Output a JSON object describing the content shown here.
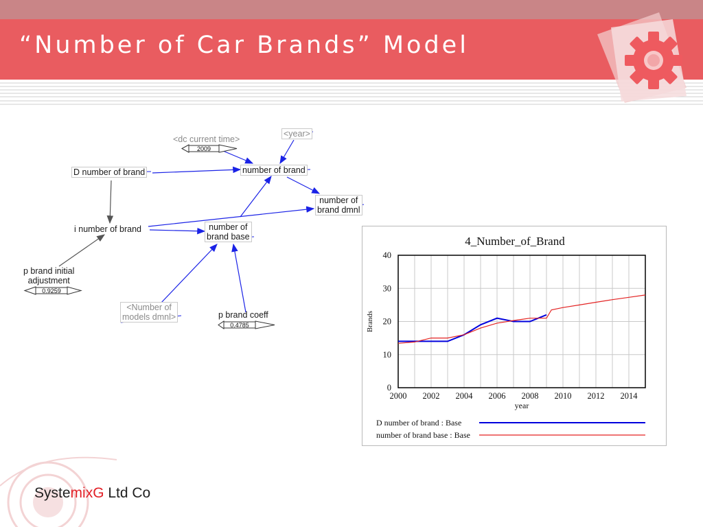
{
  "slide": {
    "title": "“Number of Car Brands” Model",
    "accent_color": "#e95c60",
    "logo_text": {
      "prefix": "Syste",
      "mid": "mixG",
      "suffix": " Ltd Co"
    }
  },
  "diagram": {
    "variables": {
      "dc_current_time": "<dc current time>",
      "dc_current_time_value": "2009",
      "year": "<year>",
      "d_number_of_brand": "D number of brand",
      "number_of_brand": "number of brand",
      "number_of_brand_dmnl_1": "number of",
      "number_of_brand_dmnl_2": "brand dmnl",
      "i_number_of_brand": "i number of brand",
      "number_of_brand_base_1": "number of",
      "number_of_brand_base_2": "brand base",
      "p_brand_initial_adjustment_1": "p brand initial",
      "p_brand_initial_adjustment_2": "adjustment",
      "p_brand_initial_adjustment_value": "0.9259",
      "number_of_models_dmnl_1": "<Number of",
      "number_of_models_dmnl_2": "models dmnl>",
      "p_brand_coeff": "p brand coeff",
      "p_brand_coeff_value": "0.4785"
    }
  },
  "chart_data": {
    "type": "line",
    "title": "4_Number_of_Brand",
    "xlabel": "year",
    "ylabel": "Brands",
    "xlim": [
      2000,
      2015
    ],
    "ylim": [
      0,
      40
    ],
    "x_ticks": [
      2000,
      2002,
      2004,
      2006,
      2008,
      2010,
      2012,
      2014
    ],
    "y_ticks": [
      0,
      10,
      20,
      30,
      40
    ],
    "grid": true,
    "legend_position": "bottom",
    "series": [
      {
        "name": "D number of brand : Base",
        "color": "#0000dd",
        "x": [
          2000,
          2001,
          2002,
          2003,
          2004,
          2005,
          2006,
          2007,
          2008,
          2009
        ],
        "y": [
          14,
          14,
          14,
          14,
          16,
          19,
          21,
          20,
          20,
          22
        ]
      },
      {
        "name": "number of brand base : Base",
        "color": "#e32222",
        "x": [
          2000,
          2001,
          2002,
          2003,
          2004,
          2005,
          2006,
          2007,
          2008,
          2009,
          2009.3,
          2010,
          2011,
          2012,
          2013,
          2014,
          2015
        ],
        "y": [
          13.4,
          13.8,
          15,
          15,
          16,
          18,
          19.5,
          20.3,
          21,
          21,
          23.5,
          24.2,
          25,
          25.8,
          26.6,
          27.3,
          28
        ]
      }
    ]
  }
}
